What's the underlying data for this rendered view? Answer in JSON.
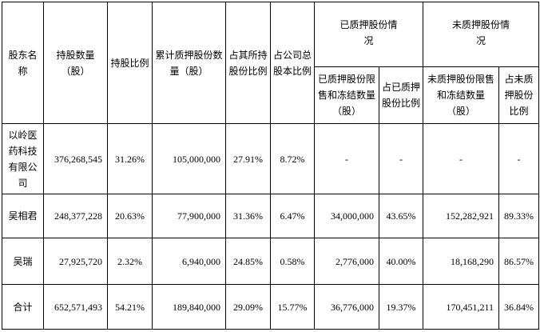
{
  "headers": {
    "shareholder": "股东名称",
    "shares_held": "持股数量（股）",
    "holding_ratio": "持股比例",
    "cumulative_pledged": "累计质押股份数量（股）",
    "pct_of_holdings": "占其所持股份比例",
    "pct_of_total": "占公司总股本比例",
    "pledged_group": "已质押股份情况",
    "pledged_restricted": "已质押股份限售和冻结数量（股）",
    "pledged_ratio": "占已质押股份比例",
    "unpledged_group": "未质押股份情况",
    "unpledged_restricted": "未质押股份限售和冻结数量（股）",
    "unpledged_ratio": "占未质押股份比例"
  },
  "rows": [
    {
      "name": "以岭医药科技有限公司",
      "shares_held": "376,268,545",
      "holding_ratio": "31.26%",
      "cumulative_pledged": "105,000,000",
      "pct_of_holdings": "27.91%",
      "pct_of_total": "8.72%",
      "pledged_restricted": "-",
      "pledged_ratio": "-",
      "unpledged_restricted": "-",
      "unpledged_ratio": "-"
    },
    {
      "name": "吴相君",
      "shares_held": "248,377,228",
      "holding_ratio": "20.63%",
      "cumulative_pledged": "77,900,000",
      "pct_of_holdings": "31.36%",
      "pct_of_total": "6.47%",
      "pledged_restricted": "34,000,000",
      "pledged_ratio": "43.65%",
      "unpledged_restricted": "152,282,921",
      "unpledged_ratio": "89.33%"
    },
    {
      "name": "吴瑞",
      "shares_held": "27,925,720",
      "holding_ratio": "2.32%",
      "cumulative_pledged": "6,940,000",
      "pct_of_holdings": "24.85%",
      "pct_of_total": "0.58%",
      "pledged_restricted": "2,776,000",
      "pledged_ratio": "40.00%",
      "unpledged_restricted": "18,168,290",
      "unpledged_ratio": "86.57%"
    },
    {
      "name": "合计",
      "shares_held": "652,571,493",
      "holding_ratio": "54.21%",
      "cumulative_pledged": "189,840,000",
      "pct_of_holdings": "29.09%",
      "pct_of_total": "15.77%",
      "pledged_restricted": "36,776,000",
      "pledged_ratio": "19.37%",
      "unpledged_restricted": "170,451,211",
      "unpledged_ratio": "36.84%"
    }
  ]
}
